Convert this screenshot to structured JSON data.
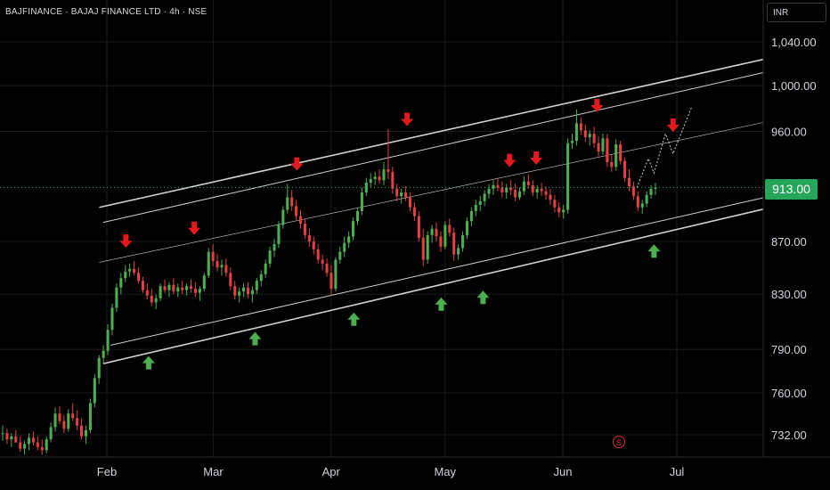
{
  "header": {
    "title": "BAJFINANCE · BAJAJ FINANCE LTD · 4h · NSE",
    "currency": "INR"
  },
  "last_price": "913.00",
  "event_badge": "S",
  "colors": {
    "up": "#4caf50",
    "down": "#e34040",
    "channel": "#d0d0d0",
    "grid": "#1a1a1a",
    "price_tag": "#26a65b"
  },
  "chart_data": {
    "type": "candlestick",
    "title": "",
    "timeframe": "4h",
    "x_ticks": [
      {
        "label": "Feb",
        "day": 31
      },
      {
        "label": "Mar",
        "day": 59
      },
      {
        "label": "Apr",
        "day": 90
      },
      {
        "label": "May",
        "day": 120
      },
      {
        "label": "Jun",
        "day": 151
      },
      {
        "label": "Jul",
        "day": 181
      }
    ],
    "y_ticks": [
      1040,
      1000,
      960,
      870,
      830,
      790,
      760,
      732
    ],
    "y_tick_labels": [
      "1,040.00",
      "1,000.00",
      "960.00",
      "870.00",
      "830.00",
      "790.00",
      "760.00",
      "732.00"
    ],
    "current_price": 913.0,
    "ohlc": [
      [
        733,
        738,
        728,
        733
      ],
      [
        733,
        736,
        726,
        729
      ],
      [
        729,
        733,
        724,
        731
      ],
      [
        731,
        735,
        727,
        727
      ],
      [
        727,
        731,
        721,
        723
      ],
      [
        723,
        728,
        719,
        726
      ],
      [
        726,
        733,
        722,
        730
      ],
      [
        730,
        734,
        725,
        727
      ],
      [
        727,
        731,
        722,
        724
      ],
      [
        724,
        729,
        719,
        722
      ],
      [
        722,
        731,
        720,
        729
      ],
      [
        729,
        740,
        727,
        737
      ],
      [
        737,
        750,
        734,
        746
      ],
      [
        746,
        751,
        739,
        741
      ],
      [
        741,
        745,
        733,
        736
      ],
      [
        736,
        749,
        734,
        746
      ],
      [
        746,
        753,
        741,
        743
      ],
      [
        743,
        748,
        735,
        738
      ],
      [
        738,
        743,
        729,
        731
      ],
      [
        731,
        738,
        726,
        735
      ],
      [
        735,
        756,
        733,
        753
      ],
      [
        753,
        773,
        750,
        770
      ],
      [
        770,
        786,
        766,
        784
      ],
      [
        784,
        793,
        780,
        789
      ],
      [
        789,
        808,
        786,
        804
      ],
      [
        804,
        823,
        800,
        820
      ],
      [
        820,
        838,
        817,
        835
      ],
      [
        835,
        846,
        830,
        842
      ],
      [
        842,
        852,
        839,
        847
      ],
      [
        847,
        853,
        843,
        849
      ],
      [
        849,
        855,
        844,
        846
      ],
      [
        846,
        850,
        838,
        840
      ],
      [
        840,
        843,
        831,
        833
      ],
      [
        833,
        838,
        826,
        829
      ],
      [
        829,
        834,
        821,
        824
      ],
      [
        824,
        830,
        819,
        827
      ],
      [
        827,
        838,
        825,
        836
      ],
      [
        836,
        841,
        831,
        833
      ],
      [
        833,
        839,
        828,
        837
      ],
      [
        837,
        842,
        830,
        832
      ],
      [
        832,
        838,
        828,
        835
      ],
      [
        835,
        840,
        830,
        833
      ],
      [
        833,
        838,
        829,
        836
      ],
      [
        836,
        841,
        831,
        834
      ],
      [
        834,
        839,
        828,
        831
      ],
      [
        831,
        836,
        825,
        834
      ],
      [
        834,
        846,
        832,
        844
      ],
      [
        844,
        865,
        842,
        862
      ],
      [
        862,
        868,
        851,
        855
      ],
      [
        855,
        860,
        847,
        850
      ],
      [
        850,
        856,
        844,
        852
      ],
      [
        852,
        857,
        843,
        846
      ],
      [
        846,
        850,
        833,
        836
      ],
      [
        836,
        840,
        826,
        829
      ],
      [
        829,
        835,
        824,
        832
      ],
      [
        832,
        838,
        828,
        835
      ],
      [
        835,
        839,
        827,
        830
      ],
      [
        830,
        836,
        824,
        833
      ],
      [
        833,
        842,
        830,
        840
      ],
      [
        840,
        848,
        836,
        845
      ],
      [
        845,
        856,
        842,
        853
      ],
      [
        853,
        866,
        850,
        863
      ],
      [
        863,
        872,
        858,
        868
      ],
      [
        868,
        886,
        865,
        883
      ],
      [
        883,
        898,
        880,
        895
      ],
      [
        895,
        916,
        892,
        905
      ],
      [
        905,
        911,
        894,
        898
      ],
      [
        898,
        903,
        887,
        890
      ],
      [
        890,
        895,
        880,
        884
      ],
      [
        884,
        888,
        872,
        875
      ],
      [
        875,
        880,
        866,
        870
      ],
      [
        870,
        874,
        860,
        864
      ],
      [
        864,
        868,
        853,
        856
      ],
      [
        856,
        860,
        848,
        853
      ],
      [
        853,
        857,
        843,
        846
      ],
      [
        846,
        852,
        829,
        834
      ],
      [
        834,
        858,
        832,
        856
      ],
      [
        856,
        866,
        853,
        862
      ],
      [
        862,
        874,
        858,
        869
      ],
      [
        869,
        878,
        865,
        874
      ],
      [
        874,
        889,
        871,
        886
      ],
      [
        886,
        897,
        883,
        894
      ],
      [
        894,
        913,
        891,
        909
      ],
      [
        909,
        921,
        906,
        917
      ],
      [
        917,
        925,
        913,
        920
      ],
      [
        920,
        926,
        915,
        922
      ],
      [
        922,
        928,
        916,
        919
      ],
      [
        919,
        934,
        915,
        928
      ],
      [
        928,
        962,
        920,
        926
      ],
      [
        926,
        930,
        908,
        912
      ],
      [
        912,
        916,
        902,
        906
      ],
      [
        906,
        912,
        900,
        909
      ],
      [
        909,
        914,
        902,
        905
      ],
      [
        905,
        909,
        894,
        897
      ],
      [
        897,
        901,
        886,
        890
      ],
      [
        890,
        894,
        870,
        873
      ],
      [
        873,
        880,
        851,
        856
      ],
      [
        856,
        878,
        853,
        875
      ],
      [
        875,
        883,
        869,
        880
      ],
      [
        880,
        885,
        870,
        874
      ],
      [
        874,
        878,
        862,
        866
      ],
      [
        866,
        886,
        864,
        883
      ],
      [
        883,
        888,
        874,
        877
      ],
      [
        877,
        881,
        855,
        860
      ],
      [
        860,
        868,
        856,
        865
      ],
      [
        865,
        878,
        862,
        875
      ],
      [
        875,
        889,
        872,
        886
      ],
      [
        886,
        897,
        882,
        894
      ],
      [
        894,
        903,
        890,
        899
      ],
      [
        899,
        906,
        894,
        902
      ],
      [
        902,
        911,
        898,
        908
      ],
      [
        908,
        916,
        904,
        912
      ],
      [
        912,
        919,
        907,
        915
      ],
      [
        915,
        921,
        910,
        913
      ],
      [
        913,
        918,
        905,
        909
      ],
      [
        909,
        916,
        904,
        913
      ],
      [
        913,
        919,
        907,
        911
      ],
      [
        911,
        916,
        902,
        905
      ],
      [
        905,
        913,
        903,
        910
      ],
      [
        910,
        922,
        907,
        918
      ],
      [
        918,
        924,
        912,
        915
      ],
      [
        915,
        919,
        906,
        909
      ],
      [
        909,
        915,
        904,
        912
      ],
      [
        912,
        917,
        906,
        910
      ],
      [
        910,
        914,
        903,
        907
      ],
      [
        907,
        912,
        899,
        903
      ],
      [
        903,
        907,
        893,
        897
      ],
      [
        897,
        901,
        889,
        893
      ],
      [
        893,
        899,
        888,
        895
      ],
      [
        895,
        954,
        892,
        950
      ],
      [
        950,
        958,
        945,
        952
      ],
      [
        952,
        979,
        948,
        967
      ],
      [
        967,
        972,
        957,
        961
      ],
      [
        961,
        966,
        951,
        955
      ],
      [
        955,
        961,
        948,
        958
      ],
      [
        958,
        964,
        946,
        950
      ],
      [
        950,
        956,
        939,
        943
      ],
      [
        943,
        958,
        940,
        954
      ],
      [
        954,
        958,
        930,
        934
      ],
      [
        934,
        940,
        926,
        930
      ],
      [
        930,
        953,
        927,
        949
      ],
      [
        949,
        952,
        932,
        935
      ],
      [
        935,
        938,
        918,
        921
      ],
      [
        921,
        928,
        910,
        914
      ],
      [
        914,
        918,
        903,
        906
      ],
      [
        906,
        910,
        894,
        897
      ],
      [
        897,
        903,
        892,
        900
      ],
      [
        900,
        910,
        897,
        907
      ],
      [
        907,
        915,
        904,
        912
      ],
      [
        912,
        917,
        907,
        913
      ]
    ],
    "projection": [
      {
        "day": 170.5,
        "price": 913
      },
      {
        "day": 173.5,
        "price": 937
      },
      {
        "day": 175,
        "price": 925
      },
      {
        "day": 178,
        "price": 958
      },
      {
        "day": 180,
        "price": 941
      },
      {
        "day": 185,
        "price": 982
      }
    ],
    "channel_lines": [
      {
        "from": {
          "day": 29,
          "price": 897
        },
        "to": {
          "day": 215,
          "price": 1032
        }
      },
      {
        "from": {
          "day": 30,
          "price": 885
        },
        "to": {
          "day": 215,
          "price": 1020
        }
      },
      {
        "from": {
          "day": 29,
          "price": 854
        },
        "to": {
          "day": 215,
          "price": 975
        }
      },
      {
        "from": {
          "day": 32,
          "price": 793
        },
        "to": {
          "day": 215,
          "price": 912
        }
      },
      {
        "from": {
          "day": 30,
          "price": 780
        },
        "to": {
          "day": 215,
          "price": 903
        }
      }
    ],
    "markers": [
      {
        "type": "sell",
        "day": 36,
        "price": 870
      },
      {
        "type": "sell",
        "day": 54,
        "price": 880
      },
      {
        "type": "sell",
        "day": 81,
        "price": 932
      },
      {
        "type": "sell",
        "day": 110,
        "price": 970
      },
      {
        "type": "sell",
        "day": 137,
        "price": 935
      },
      {
        "type": "sell",
        "day": 144,
        "price": 937
      },
      {
        "type": "sell",
        "day": 160,
        "price": 982
      },
      {
        "type": "sell",
        "day": 180,
        "price": 965
      },
      {
        "type": "buy",
        "day": 42,
        "price": 781
      },
      {
        "type": "buy",
        "day": 70,
        "price": 798
      },
      {
        "type": "buy",
        "day": 96,
        "price": 812
      },
      {
        "type": "buy",
        "day": 119,
        "price": 823
      },
      {
        "type": "buy",
        "day": 130,
        "price": 828
      },
      {
        "type": "buy",
        "day": 175,
        "price": 863
      }
    ]
  }
}
